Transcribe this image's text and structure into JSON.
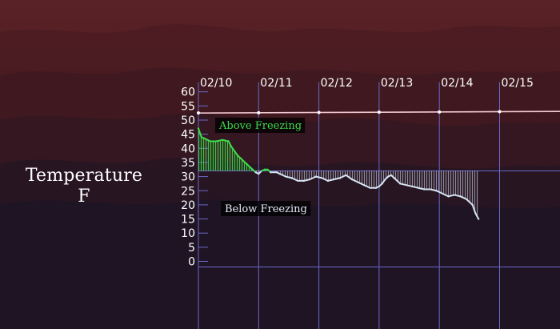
{
  "chart_data": {
    "type": "line",
    "title": "",
    "ylabel_line1": "Temperature",
    "ylabel_line2": "F",
    "ylim": [
      0,
      60
    ],
    "yticks": [
      60,
      55,
      50,
      45,
      40,
      35,
      30,
      25,
      20,
      15,
      10,
      5,
      0
    ],
    "xticks": [
      "02/10",
      "02/11",
      "02/12",
      "02/13",
      "02/14",
      "02/15"
    ],
    "freezing_point": 32,
    "reference_line": {
      "value": 52.5
    },
    "annotations": {
      "above": "Above Freezing",
      "below": "Below Freezing"
    },
    "colors": {
      "above": "#3ddc4a",
      "below": "#d6e4f2",
      "reference": "#f2c8d2",
      "grid": "#6a68c8"
    },
    "series": [
      {
        "x_days": [
          0,
          0.05,
          0.1,
          0.2,
          0.3,
          0.4,
          0.5,
          0.55,
          0.6,
          0.65,
          0.7,
          0.75,
          0.8,
          0.85,
          0.9,
          0.95,
          1.0,
          1.05,
          1.1,
          1.15,
          1.2,
          1.3,
          1.35,
          1.45,
          1.55,
          1.65,
          1.75,
          1.85,
          1.95,
          2.05,
          2.15,
          2.25,
          2.35,
          2.45,
          2.55,
          2.65,
          2.75,
          2.85,
          2.95,
          3.0,
          3.05,
          3.1,
          3.15,
          3.2,
          3.25,
          3.3,
          3.35,
          3.45,
          3.55,
          3.65,
          3.75,
          3.85,
          3.95,
          4.05,
          4.15,
          4.25,
          4.35,
          4.45,
          4.55,
          4.6,
          4.65
        ],
        "values": [
          47,
          44,
          43.5,
          42.5,
          42.5,
          43,
          42.5,
          40.5,
          39,
          37.5,
          36.5,
          35.5,
          34.5,
          33.5,
          32.5,
          31.5,
          31,
          32,
          32.5,
          32.5,
          31.5,
          31.5,
          31,
          30,
          29.5,
          28.5,
          28.5,
          29,
          30,
          29.5,
          28.5,
          29,
          29.5,
          30.5,
          29,
          28,
          27,
          26,
          26,
          26.5,
          27.5,
          29,
          30,
          30.5,
          29.5,
          28.5,
          27.5,
          27,
          26.5,
          26,
          25.5,
          25.5,
          25,
          24,
          23,
          23.5,
          23,
          22,
          20,
          17,
          15
        ]
      }
    ]
  }
}
